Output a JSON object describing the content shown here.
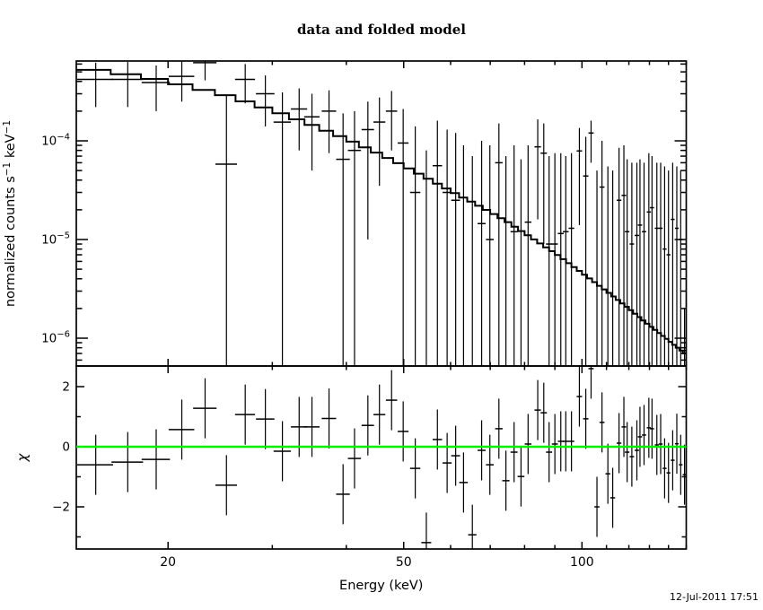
{
  "title": "data and folded model",
  "timestamp": "12-Jul-2011 17:51",
  "chart_data": {
    "type": "scatter",
    "title": "data and folded model",
    "xlabel": "Energy (keV)",
    "xscale": "log",
    "xlim": [
      14,
      150
    ],
    "x_major_ticks": [
      {
        "v": 20,
        "label": "20"
      },
      {
        "v": 50,
        "label": "50"
      },
      {
        "v": 100,
        "label": "100"
      }
    ],
    "x_minor_ticks": [
      30,
      40,
      60,
      70,
      80,
      90,
      110,
      120,
      130,
      140,
      150
    ],
    "legend": "none",
    "grid": false,
    "colors": {
      "data": "#000000",
      "model": "#000000",
      "zero_line": "#00ee00",
      "frame": "#000000"
    },
    "top_panel": {
      "name": "spectrum",
      "ylabel_segments": [
        {
          "t": "normalized counts s",
          "sup": false
        },
        {
          "t": "−1",
          "sup": true
        },
        {
          "t": " keV",
          "sup": false
        },
        {
          "t": "−1",
          "sup": true
        }
      ],
      "yscale": "log",
      "ylim": [
        5.2e-07,
        0.000644
      ],
      "y_major_ticks": [
        {
          "v": 0.0001,
          "base": "10",
          "exp": "−4"
        },
        {
          "v": 1e-05,
          "base": "10",
          "exp": "−5"
        },
        {
          "v": 1e-06,
          "base": "10",
          "exp": "−6"
        }
      ],
      "cap_halfwidth_kev": 1.05,
      "model_anchors": [
        [
          14,
          0.00055
        ],
        [
          16,
          0.0005
        ],
        [
          18,
          0.00045
        ],
        [
          20,
          0.0004
        ],
        [
          22,
          0.00035
        ],
        [
          25,
          0.00029
        ],
        [
          28,
          0.000235
        ],
        [
          31,
          0.00019
        ],
        [
          35,
          0.000145
        ],
        [
          40,
          0.000105
        ],
        [
          45,
          7.6e-05
        ],
        [
          50,
          5.6e-05
        ],
        [
          56,
          3.9e-05
        ],
        [
          62,
          2.8e-05
        ],
        [
          68,
          2.1e-05
        ],
        [
          75,
          1.5e-05
        ],
        [
          82,
          1.05e-05
        ],
        [
          90,
          7.3e-06
        ],
        [
          100,
          4.6e-06
        ],
        [
          110,
          3e-06
        ],
        [
          120,
          2e-06
        ],
        [
          130,
          1.35e-06
        ],
        [
          140,
          9.5e-07
        ],
        [
          150,
          6.8e-07
        ]
      ],
      "model_bin_kev": 2,
      "points_format": [
        "energy_keV",
        "value_or_null",
        "bar_top",
        "bar_bottom_or_null_means_offscale"
      ],
      "points": [
        [
          15.1,
          0.00042,
          0.00062,
          0.00022
        ],
        [
          17.1,
          0.00042,
          0.00063,
          0.00022
        ],
        [
          19.1,
          0.00039,
          0.00058,
          0.0002
        ],
        [
          21.1,
          0.00045,
          0.00065,
          0.00025
        ],
        [
          23.1,
          0.00062,
          0.00084,
          0.00041
        ],
        [
          25.1,
          5.8e-05,
          0.00029,
          null
        ],
        [
          27.0,
          0.00042,
          0.0006,
          0.00024
        ],
        [
          29.2,
          0.0003,
          0.00046,
          0.00014
        ],
        [
          31.2,
          0.000155,
          0.00031,
          null
        ],
        [
          33.3,
          0.00021,
          0.00034,
          8e-05
        ],
        [
          35.0,
          0.000175,
          0.0003,
          5e-05
        ],
        [
          37.4,
          0.0002,
          0.000325,
          7.5e-05
        ],
        [
          39.5,
          6.5e-05,
          0.00019,
          null
        ],
        [
          41.3,
          8e-05,
          0.0002,
          null
        ],
        [
          43.5,
          0.00013,
          0.00025,
          1e-05
        ],
        [
          45.5,
          0.000155,
          0.000275,
          3.5e-05
        ],
        [
          47.7,
          0.0002,
          0.00032,
          8e-05
        ],
        [
          49.9,
          9.5e-05,
          0.00021,
          null
        ],
        [
          52.3,
          3e-05,
          0.00014,
          null
        ],
        [
          54.6,
          null,
          8e-05,
          null
        ],
        [
          57.0,
          5.6e-05,
          0.00016,
          null
        ],
        [
          59.2,
          3e-05,
          0.00013,
          null
        ],
        [
          61.2,
          2.5e-05,
          0.00012,
          null
        ],
        [
          63.1,
          null,
          9e-05,
          null
        ],
        [
          65.3,
          null,
          7e-05,
          null
        ],
        [
          67.7,
          1.45e-05,
          0.0001,
          null
        ],
        [
          69.9,
          1e-05,
          9e-05,
          null
        ],
        [
          72.4,
          6e-05,
          0.00015,
          null
        ],
        [
          74.4,
          null,
          7e-05,
          null
        ],
        [
          76.8,
          1.2e-05,
          9e-05,
          null
        ],
        [
          78.9,
          null,
          6.5e-05,
          null
        ],
        [
          81.1,
          1.5e-05,
          9e-05,
          null
        ],
        [
          84.2,
          8.7e-05,
          0.000165,
          1.6e-05
        ],
        [
          86.2,
          7.5e-05,
          0.00015,
          9e-06
        ],
        [
          88.0,
          9e-06,
          7e-05,
          null
        ],
        [
          90.0,
          9e-06,
          7.5e-05,
          null
        ],
        [
          92.1,
          1.15e-05,
          7.5e-05,
          null
        ],
        [
          93.9,
          1.2e-05,
          7e-05,
          null
        ],
        [
          96.0,
          1.3e-05,
          7.5e-05,
          null
        ],
        [
          99.0,
          7.9e-05,
          0.000135,
          1.4e-05
        ],
        [
          101.5,
          4.4e-05,
          0.00011,
          null
        ],
        [
          103.6,
          0.00012,
          0.00016,
          6e-05
        ],
        [
          106.0,
          null,
          5e-05,
          null
        ],
        [
          108.1,
          3.4e-05,
          0.0001,
          null
        ],
        [
          110.6,
          null,
          5.5e-05,
          null
        ],
        [
          112.7,
          null,
          5e-05,
          null
        ],
        [
          115.5,
          2.5e-05,
          8.5e-05,
          null
        ],
        [
          117.7,
          2.8e-05,
          9e-05,
          null
        ],
        [
          119.2,
          1.2e-05,
          6.5e-05,
          null
        ],
        [
          121.4,
          9e-06,
          6e-05,
          null
        ],
        [
          123.8,
          1.1e-05,
          6e-05,
          null
        ],
        [
          125.3,
          1.4e-05,
          6.5e-05,
          null
        ],
        [
          127.3,
          1.2e-05,
          6e-05,
          null
        ],
        [
          129.7,
          1.9e-05,
          7.5e-05,
          null
        ],
        [
          131.3,
          2.1e-05,
          7e-05,
          null
        ],
        [
          133.8,
          1.3e-05,
          6e-05,
          null
        ],
        [
          135.8,
          1.3e-05,
          6e-05,
          null
        ],
        [
          137.9,
          8e-06,
          5.5e-05,
          null
        ],
        [
          140.0,
          7e-06,
          5e-05,
          null
        ],
        [
          142.3,
          1.6e-05,
          6e-05,
          null
        ],
        [
          144.6,
          1.3e-05,
          5.5e-05,
          null
        ],
        [
          146.8,
          1e-05,
          5e-05,
          null
        ],
        [
          149.0,
          7.5e-07,
          2e-06,
          null
        ]
      ]
    },
    "bottom_panel": {
      "name": "residuals",
      "ylabel": "χ",
      "ylim": [
        -3.4,
        2.69
      ],
      "y_major_ticks": [
        {
          "v": 2,
          "label": "2"
        },
        {
          "v": 0,
          "label": "0"
        },
        {
          "v": -2,
          "label": "−2"
        }
      ],
      "y_minor_ticks": [
        3,
        1,
        -1,
        -3
      ],
      "point_error": 1.0,
      "zero_line_value": 0,
      "points_format": [
        "energy_keV",
        "chi"
      ],
      "points": [
        [
          15.1,
          -0.6
        ],
        [
          17.1,
          -0.51
        ],
        [
          19.1,
          -0.42
        ],
        [
          21.1,
          0.57
        ],
        [
          23.1,
          1.28
        ],
        [
          25.1,
          -1.28
        ],
        [
          27.0,
          1.07
        ],
        [
          29.2,
          0.92
        ],
        [
          31.2,
          -0.15
        ],
        [
          33.3,
          0.66
        ],
        [
          35.0,
          0.66
        ],
        [
          37.4,
          0.94
        ],
        [
          39.5,
          -1.58
        ],
        [
          41.3,
          -0.39
        ],
        [
          43.5,
          0.71
        ],
        [
          45.5,
          1.07
        ],
        [
          47.7,
          1.55
        ],
        [
          49.9,
          0.51
        ],
        [
          52.3,
          -0.72
        ],
        [
          54.6,
          -3.19
        ],
        [
          57.0,
          0.24
        ],
        [
          59.2,
          -0.54
        ],
        [
          61.2,
          -0.3
        ],
        [
          63.1,
          -1.19
        ],
        [
          65.3,
          -2.93
        ],
        [
          67.7,
          -0.12
        ],
        [
          69.9,
          -0.6
        ],
        [
          72.4,
          0.6
        ],
        [
          74.4,
          -1.13
        ],
        [
          76.8,
          -0.18
        ],
        [
          78.9,
          -0.99
        ],
        [
          81.1,
          0.09
        ],
        [
          84.2,
          1.22
        ],
        [
          86.2,
          1.13
        ],
        [
          88.0,
          -0.18
        ],
        [
          90.0,
          0.09
        ],
        [
          92.1,
          0.18
        ],
        [
          93.9,
          0.18
        ],
        [
          96.0,
          0.18
        ],
        [
          99.0,
          1.67
        ],
        [
          101.5,
          0.93
        ],
        [
          103.6,
          2.6
        ],
        [
          106.0,
          -2.0
        ],
        [
          108.1,
          0.81
        ],
        [
          110.6,
          -0.9
        ],
        [
          112.7,
          -1.7
        ],
        [
          115.5,
          0.12
        ],
        [
          117.7,
          0.66
        ],
        [
          119.2,
          -0.18
        ],
        [
          121.4,
          -0.33
        ],
        [
          123.8,
          -0.12
        ],
        [
          125.3,
          0.33
        ],
        [
          127.3,
          0.39
        ],
        [
          129.7,
          0.63
        ],
        [
          131.3,
          0.6
        ],
        [
          133.8,
          0.06
        ],
        [
          135.8,
          0.09
        ],
        [
          137.9,
          -0.72
        ],
        [
          140.0,
          -0.87
        ],
        [
          142.3,
          -0.45
        ],
        [
          144.6,
          0.1
        ],
        [
          146.8,
          -0.6
        ],
        [
          149.0,
          -0.93
        ]
      ]
    }
  }
}
